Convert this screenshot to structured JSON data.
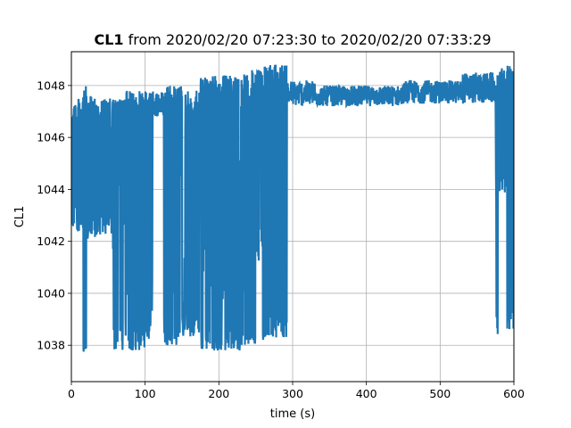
{
  "chart_data": {
    "type": "line",
    "title_bold": "CL1",
    "title_rest": " from 2020/02/20 07:23:30 to 2020/02/20 07:33:29",
    "xlabel": "time (s)",
    "ylabel": "CL1",
    "xlim": [
      0,
      600
    ],
    "ylim": [
      1036.6,
      1049.3
    ],
    "x_ticks": [
      0,
      100,
      200,
      300,
      400,
      500,
      600
    ],
    "y_ticks": [
      1038,
      1040,
      1042,
      1044,
      1046,
      1048
    ],
    "grid": true,
    "line_color": "#1f77b4",
    "series": [
      {
        "segments": [
          {
            "x0": 0,
            "x1": 15,
            "lo": 1042.4,
            "hi": 1047.5
          },
          {
            "x0": 15,
            "x1": 20,
            "lo": 1037.2,
            "hi": 1048.0
          },
          {
            "x0": 20,
            "x1": 35,
            "lo": 1042.0,
            "hi": 1047.6
          },
          {
            "x0": 35,
            "x1": 55,
            "lo": 1042.2,
            "hi": 1047.5
          },
          {
            "x0": 55,
            "x1": 70,
            "lo": 1037.8,
            "hi": 1047.5
          },
          {
            "x0": 70,
            "x1": 100,
            "lo": 1037.8,
            "hi": 1047.8
          },
          {
            "x0": 100,
            "x1": 110,
            "lo": 1038.2,
            "hi": 1048.0
          },
          {
            "x0": 110,
            "x1": 125,
            "lo": 1046.8,
            "hi": 1047.8
          },
          {
            "x0": 125,
            "x1": 150,
            "lo": 1038.0,
            "hi": 1048.0
          },
          {
            "x0": 150,
            "x1": 175,
            "lo": 1038.3,
            "hi": 1047.8
          },
          {
            "x0": 175,
            "x1": 200,
            "lo": 1037.8,
            "hi": 1048.4
          },
          {
            "x0": 200,
            "x1": 230,
            "lo": 1037.8,
            "hi": 1048.4
          },
          {
            "x0": 230,
            "x1": 260,
            "lo": 1038.0,
            "hi": 1048.6
          },
          {
            "x0": 260,
            "x1": 292,
            "lo": 1038.3,
            "hi": 1048.8
          },
          {
            "x0": 292,
            "x1": 330,
            "lo": 1047.2,
            "hi": 1048.2
          },
          {
            "x0": 330,
            "x1": 450,
            "lo": 1047.2,
            "hi": 1048.0
          },
          {
            "x0": 450,
            "x1": 530,
            "lo": 1047.3,
            "hi": 1048.2
          },
          {
            "x0": 530,
            "x1": 575,
            "lo": 1047.3,
            "hi": 1048.5
          },
          {
            "x0": 575,
            "x1": 578,
            "lo": 1038.3,
            "hi": 1048.4
          },
          {
            "x0": 578,
            "x1": 590,
            "lo": 1043.8,
            "hi": 1048.7
          },
          {
            "x0": 590,
            "x1": 600,
            "lo": 1038.6,
            "hi": 1048.8
          }
        ]
      }
    ]
  }
}
